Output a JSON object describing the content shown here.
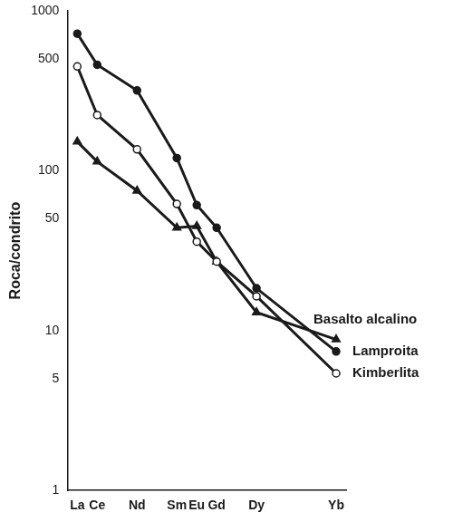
{
  "chart_data": {
    "type": "line",
    "y_label": "Roca/condrito",
    "categories": [
      "La",
      "Ce",
      null,
      "Nd",
      null,
      "Sm",
      "Eu",
      "Gd",
      null,
      "Dy",
      null,
      null,
      null,
      "Yb"
    ],
    "series": [
      {
        "name": "Lamproita",
        "color": "#1a1a1a",
        "marker": "circle",
        "line_style": "solid",
        "values": [
          720,
          460,
          null,
          318,
          null,
          120,
          61,
          44,
          null,
          18.4,
          null,
          null,
          null,
          7.4
        ]
      },
      {
        "name": "Kimberlita",
        "color": "#1a1a1a",
        "marker": "open_circle",
        "line_style": "solid",
        "values": [
          449,
          223,
          null,
          136,
          null,
          62,
          36,
          27,
          null,
          16.4,
          null,
          null,
          null,
          5.4
        ]
      },
      {
        "name": "Basalto alcalino",
        "color": "#1a1a1a",
        "marker": "triangle",
        "line_style": "solid",
        "values": [
          152,
          114,
          null,
          75,
          null,
          44,
          45,
          27,
          null,
          13,
          null,
          null,
          null,
          8.8
        ]
      }
    ],
    "log": "y",
    "ylim": [
      1,
      1000
    ],
    "yticks": [
      1,
      5,
      10,
      50,
      100,
      500,
      1000
    ],
    "grid": false
  }
}
